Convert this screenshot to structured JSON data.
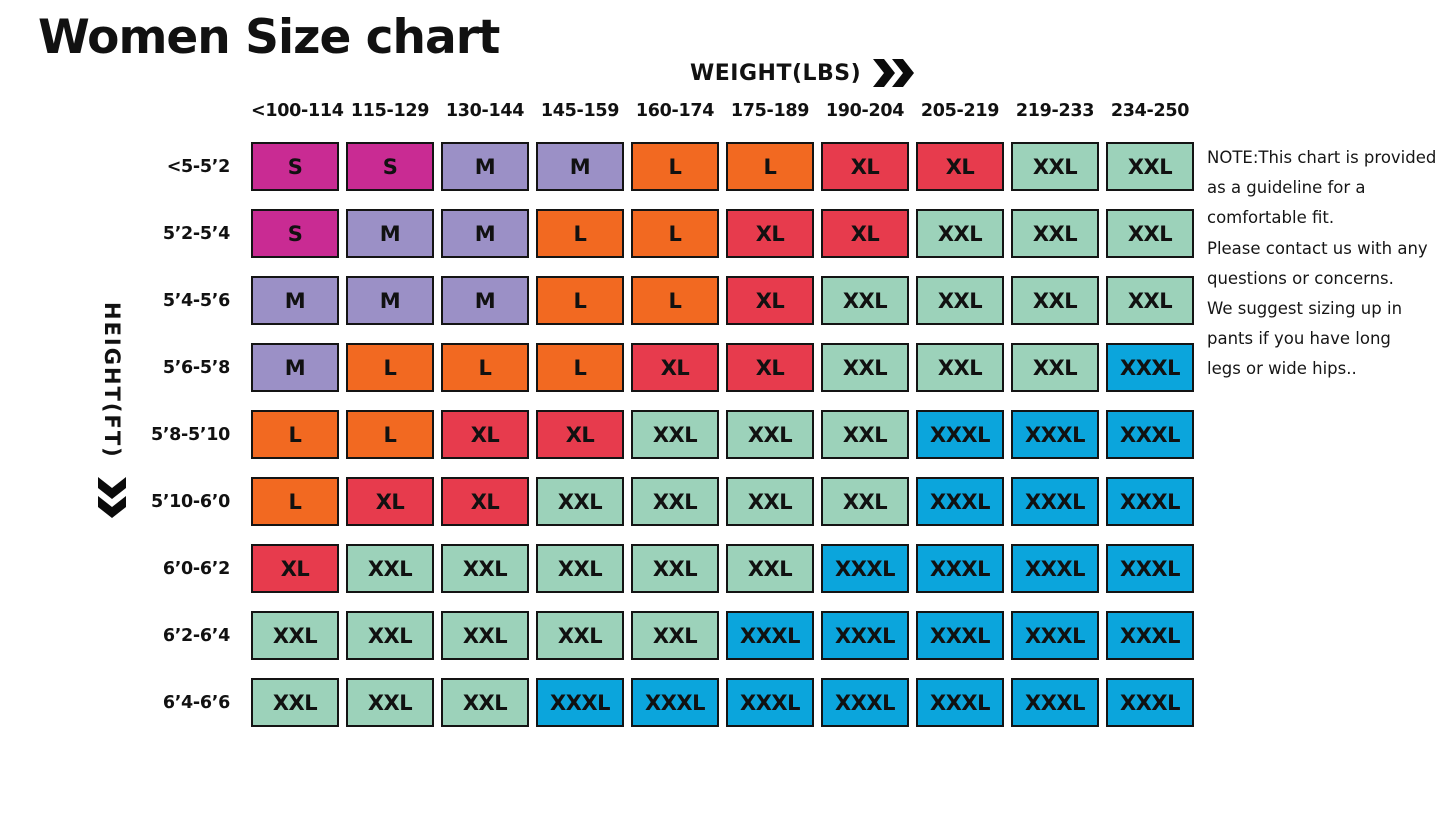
{
  "title": "Women Size chart",
  "axes": {
    "weight_label": "WEIGHT(LBS)",
    "weight_arrow_icon": "double-chevron-right",
    "height_label": "HEIGHT(FT)",
    "height_arrow_icon": "double-chevron-down"
  },
  "size_colors": {
    "S": "#C92B93",
    "M": "#9B90C6",
    "L": "#F26921",
    "XL": "#E73B4D",
    "XXL": "#9CD2BA",
    "XXXL": "#0BA5DC"
  },
  "note": {
    "lines": [
      "NOTE:This chart is provided",
      "as a guideline for a",
      "comfortable fit.",
      "Please contact us with any",
      "questions or concerns.",
      "We suggest sizing up in",
      "pants if you have long",
      "legs or wide hips.."
    ]
  },
  "chart_data": {
    "type": "heatmap",
    "title": "Women Size chart",
    "xlabel": "WEIGHT(LBS)",
    "ylabel": "HEIGHT(FT)",
    "x_categories": [
      "<100-114",
      "115-129",
      "130-144",
      "145-159",
      "160-174",
      "175-189",
      "190-204",
      "205-219",
      "219-233",
      "234-250"
    ],
    "y_categories": [
      "<5-5’2",
      "5’2-5’4",
      "5’4-5’6",
      "5’6-5’8",
      "5’8-5’10",
      "5’10-6’0",
      "6’0-6’2",
      "6’2-6’4",
      "6’4-6’6"
    ],
    "values": [
      [
        "S",
        "S",
        "M",
        "M",
        "L",
        "L",
        "XL",
        "XL",
        "XXL",
        "XXL"
      ],
      [
        "S",
        "M",
        "M",
        "L",
        "L",
        "XL",
        "XL",
        "XXL",
        "XXL",
        "XXL"
      ],
      [
        "M",
        "M",
        "M",
        "L",
        "L",
        "XL",
        "XXL",
        "XXL",
        "XXL",
        "XXL"
      ],
      [
        "M",
        "L",
        "L",
        "L",
        "XL",
        "XL",
        "XXL",
        "XXL",
        "XXL",
        "XXXL"
      ],
      [
        "L",
        "L",
        "XL",
        "XL",
        "XXL",
        "XXL",
        "XXL",
        "XXXL",
        "XXXL",
        "XXXL"
      ],
      [
        "L",
        "XL",
        "XL",
        "XXL",
        "XXL",
        "XXL",
        "XXL",
        "XXXL",
        "XXXL",
        "XXXL"
      ],
      [
        "XL",
        "XXL",
        "XXL",
        "XXL",
        "XXL",
        "XXL",
        "XXXL",
        "XXXL",
        "XXXL",
        "XXXL"
      ],
      [
        "XXL",
        "XXL",
        "XXL",
        "XXL",
        "XXL",
        "XXXL",
        "XXXL",
        "XXXL",
        "XXXL",
        "XXXL"
      ],
      [
        "XXL",
        "XXL",
        "XXL",
        "XXXL",
        "XXXL",
        "XXXL",
        "XXXL",
        "XXXL",
        "XXXL",
        "XXXL"
      ]
    ],
    "legend_position": "none",
    "grid": "off",
    "cell_border_color": "#141414",
    "cell_text_color": "#111111"
  }
}
